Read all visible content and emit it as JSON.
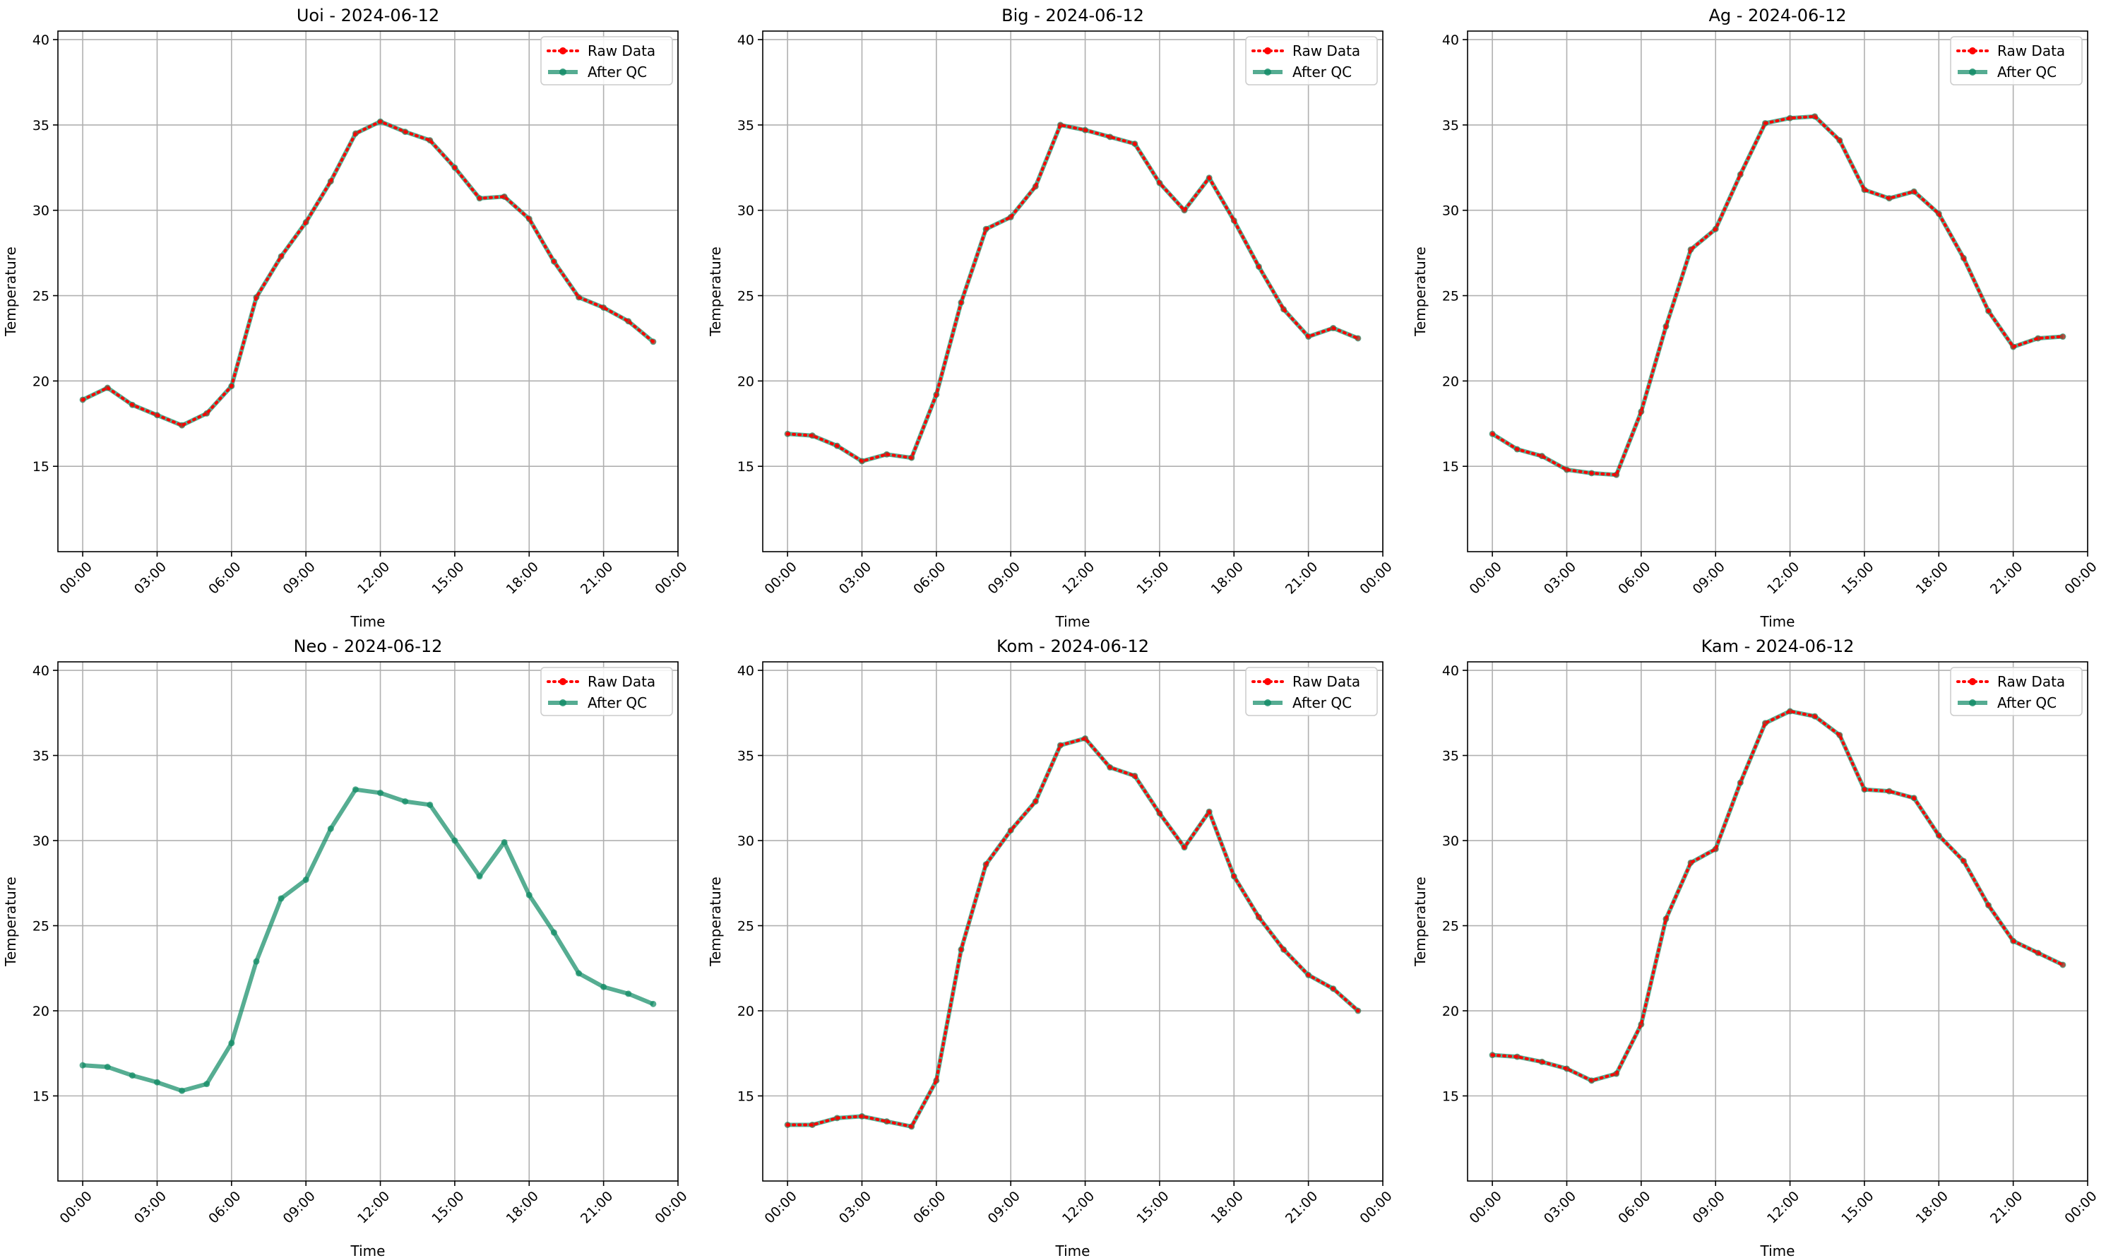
{
  "colors": {
    "raw": "#ff0000",
    "qc": "#0e8a64",
    "grid": "#b0b0b0"
  },
  "chart_data": [
    {
      "type": "line",
      "title": "Uoi - 2024-06-12",
      "xlabel": "Time",
      "ylabel": "Temperature",
      "xticks": [
        "00:00",
        "03:00",
        "06:00",
        "09:00",
        "12:00",
        "15:00",
        "18:00",
        "21:00",
        "00:00"
      ],
      "yticks": [
        "15",
        "20",
        "25",
        "30",
        "35",
        "40"
      ],
      "xlim": [
        -1,
        24
      ],
      "ylim": [
        10,
        40.5
      ],
      "grid": true,
      "legend": "top-right",
      "x_hours": [
        0,
        1,
        2,
        3,
        4,
        5,
        6,
        7,
        8,
        9,
        10,
        11,
        12,
        13,
        14,
        15,
        16,
        17,
        18,
        19,
        20,
        21,
        22,
        23
      ],
      "series": [
        {
          "name": "Raw Data",
          "values": [
            18.9,
            19.6,
            18.6,
            18.0,
            17.4,
            18.1,
            19.7,
            24.9,
            27.3,
            29.3,
            31.7,
            34.5,
            35.2,
            34.6,
            34.1,
            32.5,
            30.7,
            30.8,
            29.5,
            27.0,
            24.9,
            24.3,
            23.5,
            22.3
          ]
        },
        {
          "name": "After QC",
          "values": [
            18.9,
            19.6,
            18.6,
            18.0,
            17.4,
            18.1,
            19.7,
            24.9,
            27.3,
            29.3,
            31.7,
            34.5,
            35.2,
            34.6,
            34.1,
            32.5,
            30.7,
            30.8,
            29.5,
            27.0,
            24.9,
            24.3,
            23.5,
            22.3
          ]
        }
      ]
    },
    {
      "type": "line",
      "title": "Big - 2024-06-12",
      "xlabel": "Time",
      "ylabel": "Temperature",
      "xticks": [
        "00:00",
        "03:00",
        "06:00",
        "09:00",
        "12:00",
        "15:00",
        "18:00",
        "21:00",
        "00:00"
      ],
      "yticks": [
        "15",
        "20",
        "25",
        "30",
        "35",
        "40"
      ],
      "xlim": [
        -1,
        24
      ],
      "ylim": [
        10,
        40.5
      ],
      "grid": true,
      "legend": "top-right",
      "x_hours": [
        0,
        1,
        2,
        3,
        4,
        5,
        6,
        7,
        8,
        9,
        10,
        11,
        12,
        13,
        14,
        15,
        16,
        17,
        18,
        19,
        20,
        21,
        22,
        23
      ],
      "series": [
        {
          "name": "Raw Data",
          "values": [
            16.9,
            16.8,
            16.2,
            15.3,
            15.7,
            15.5,
            19.2,
            24.6,
            28.9,
            29.6,
            31.4,
            35.0,
            34.7,
            34.3,
            33.9,
            31.6,
            30.0,
            31.9,
            29.4,
            26.7,
            24.2,
            22.6,
            23.1,
            22.5
          ]
        },
        {
          "name": "After QC",
          "values": [
            16.9,
            16.8,
            16.2,
            15.3,
            15.7,
            15.5,
            19.2,
            24.6,
            28.9,
            29.6,
            31.4,
            35.0,
            34.7,
            34.3,
            33.9,
            31.6,
            30.0,
            31.9,
            29.4,
            26.7,
            24.2,
            22.6,
            23.1,
            22.5
          ]
        }
      ]
    },
    {
      "type": "line",
      "title": "Ag - 2024-06-12",
      "xlabel": "Time",
      "ylabel": "Temperature",
      "xticks": [
        "00:00",
        "03:00",
        "06:00",
        "09:00",
        "12:00",
        "15:00",
        "18:00",
        "21:00",
        "00:00"
      ],
      "yticks": [
        "15",
        "20",
        "25",
        "30",
        "35",
        "40"
      ],
      "xlim": [
        -1,
        24
      ],
      "ylim": [
        10,
        40.5
      ],
      "grid": true,
      "legend": "top-right",
      "x_hours": [
        0,
        1,
        2,
        3,
        4,
        5,
        6,
        7,
        8,
        9,
        10,
        11,
        12,
        13,
        14,
        15,
        16,
        17,
        18,
        19,
        20,
        21,
        22,
        23
      ],
      "series": [
        {
          "name": "Raw Data",
          "values": [
            16.9,
            16.0,
            15.6,
            14.8,
            14.6,
            14.5,
            18.2,
            23.2,
            27.7,
            28.9,
            32.1,
            35.1,
            35.4,
            35.5,
            34.1,
            31.2,
            30.7,
            31.1,
            29.8,
            27.2,
            24.1,
            22.0,
            22.5,
            22.6
          ]
        },
        {
          "name": "After QC",
          "values": [
            16.9,
            16.0,
            15.6,
            14.8,
            14.6,
            14.5,
            18.2,
            23.2,
            27.7,
            28.9,
            32.1,
            35.1,
            35.4,
            35.5,
            34.1,
            31.2,
            30.7,
            31.1,
            29.8,
            27.2,
            24.1,
            22.0,
            22.5,
            22.6
          ]
        }
      ]
    },
    {
      "type": "line",
      "title": "Neo - 2024-06-12",
      "xlabel": "Time",
      "ylabel": "Temperature",
      "xticks": [
        "00:00",
        "03:00",
        "06:00",
        "09:00",
        "12:00",
        "15:00",
        "18:00",
        "21:00",
        "00:00"
      ],
      "yticks": [
        "15",
        "20",
        "25",
        "30",
        "35",
        "40"
      ],
      "xlim": [
        -1,
        24
      ],
      "ylim": [
        10,
        40.5
      ],
      "grid": true,
      "legend": "top-right",
      "x_hours": [
        0,
        1,
        2,
        3,
        4,
        5,
        6,
        7,
        8,
        9,
        10,
        11,
        12,
        13,
        14,
        15,
        16,
        17,
        18,
        19,
        20,
        21,
        22,
        23
      ],
      "series": [
        {
          "name": "Raw Data",
          "values": []
        },
        {
          "name": "After QC",
          "values": [
            16.8,
            16.7,
            16.2,
            15.8,
            15.3,
            15.7,
            18.1,
            22.9,
            26.6,
            27.7,
            30.7,
            33.0,
            32.8,
            32.3,
            32.1,
            30.0,
            27.9,
            29.9,
            26.8,
            24.6,
            22.2,
            21.4,
            21.0,
            20.4
          ]
        }
      ]
    },
    {
      "type": "line",
      "title": "Kom - 2024-06-12",
      "xlabel": "Time",
      "ylabel": "Temperature",
      "xticks": [
        "00:00",
        "03:00",
        "06:00",
        "09:00",
        "12:00",
        "15:00",
        "18:00",
        "21:00",
        "00:00"
      ],
      "yticks": [
        "15",
        "20",
        "25",
        "30",
        "35",
        "40"
      ],
      "xlim": [
        -1,
        24
      ],
      "ylim": [
        10,
        40.5
      ],
      "grid": true,
      "legend": "top-right",
      "x_hours": [
        0,
        1,
        2,
        3,
        4,
        5,
        6,
        7,
        8,
        9,
        10,
        11,
        12,
        13,
        14,
        15,
        16,
        17,
        18,
        19,
        20,
        21,
        22,
        23
      ],
      "series": [
        {
          "name": "Raw Data",
          "values": [
            13.3,
            13.3,
            13.7,
            13.8,
            13.5,
            13.2,
            15.9,
            23.6,
            28.6,
            30.6,
            32.3,
            35.6,
            36.0,
            34.3,
            33.8,
            31.6,
            29.6,
            31.7,
            27.9,
            25.5,
            23.6,
            22.1,
            21.3,
            20.0
          ]
        },
        {
          "name": "After QC",
          "values": [
            13.3,
            13.3,
            13.7,
            13.8,
            13.5,
            13.2,
            15.9,
            23.6,
            28.6,
            30.6,
            32.3,
            35.6,
            36.0,
            34.3,
            33.8,
            31.6,
            29.6,
            31.7,
            27.9,
            25.5,
            23.6,
            22.1,
            21.3,
            20.0
          ]
        }
      ]
    },
    {
      "type": "line",
      "title": "Kam - 2024-06-12",
      "xlabel": "Time",
      "ylabel": "Temperature",
      "xticks": [
        "00:00",
        "03:00",
        "06:00",
        "09:00",
        "12:00",
        "15:00",
        "18:00",
        "21:00",
        "00:00"
      ],
      "yticks": [
        "15",
        "20",
        "25",
        "30",
        "35",
        "40"
      ],
      "xlim": [
        -1,
        24
      ],
      "ylim": [
        10,
        40.5
      ],
      "grid": true,
      "legend": "top-right",
      "x_hours": [
        0,
        1,
        2,
        3,
        4,
        5,
        6,
        7,
        8,
        9,
        10,
        11,
        12,
        13,
        14,
        15,
        16,
        17,
        18,
        19,
        20,
        21,
        22,
        23
      ],
      "series": [
        {
          "name": "Raw Data",
          "values": [
            17.4,
            17.3,
            17.0,
            16.6,
            15.9,
            16.3,
            19.2,
            25.4,
            28.7,
            29.5,
            33.4,
            36.9,
            37.6,
            37.3,
            36.2,
            33.0,
            32.9,
            32.5,
            30.3,
            28.8,
            26.2,
            24.1,
            23.4,
            22.7
          ]
        },
        {
          "name": "After QC",
          "values": [
            17.4,
            17.3,
            17.0,
            16.6,
            15.9,
            16.3,
            19.2,
            25.4,
            28.7,
            29.5,
            33.4,
            36.9,
            37.6,
            37.3,
            36.2,
            33.0,
            32.9,
            32.5,
            30.3,
            28.8,
            26.2,
            24.1,
            23.4,
            22.7
          ]
        }
      ]
    }
  ]
}
